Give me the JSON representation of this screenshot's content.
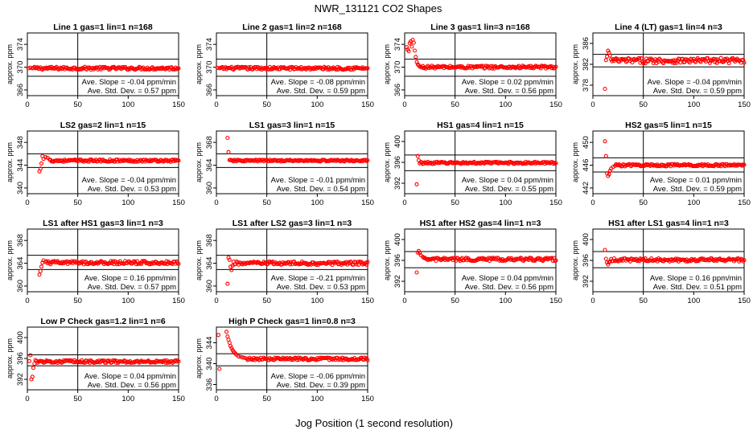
{
  "page": {
    "title": "NWR_131121  CO2 Shapes",
    "xlabel": "Jog Position (1 second resolution)"
  },
  "chart_data": [
    {
      "type": "scatter",
      "title": "Line 1 gas=1 lin=1 n=168",
      "ylabel": "approx. ppm",
      "xlim": [
        0,
        150
      ],
      "ylim": [
        365,
        376
      ],
      "yticks": [
        366,
        370,
        374
      ],
      "xticks": [
        0,
        50,
        100,
        150
      ],
      "hlines": [
        371.4,
        368.4
      ],
      "vline": 50,
      "slope": "Ave. Slope = -0.04  ppm/min",
      "stddev": "Ave. Std. Dev. = 0.57  ppm",
      "points": [
        [
          1,
          369.8
        ],
        [
          3,
          369.9
        ],
        [
          5,
          369.8
        ]
      ],
      "baseline": 369.8,
      "noise": 0.25
    },
    {
      "type": "scatter",
      "title": "Line 2 gas=1 lin=2 n=168",
      "ylabel": "approx. ppm",
      "xlim": [
        0,
        150
      ],
      "ylim": [
        365,
        376
      ],
      "yticks": [
        366,
        370,
        374
      ],
      "xticks": [
        0,
        50,
        100,
        150
      ],
      "hlines": [
        371.4,
        368.4
      ],
      "vline": 50,
      "slope": "Ave. Slope = -0.08  ppm/min",
      "stddev": "Ave. Std. Dev. = 0.59  ppm",
      "points": [
        [
          1,
          369.9
        ],
        [
          3,
          369.8
        ]
      ],
      "baseline": 369.8,
      "noise": 0.25
    },
    {
      "type": "scatter",
      "title": "Line 3 gas=1 lin=3 n=168",
      "ylabel": "approx. ppm",
      "xlim": [
        0,
        150
      ],
      "ylim": [
        365,
        376
      ],
      "yticks": [
        366,
        370,
        374
      ],
      "xticks": [
        0,
        50,
        100,
        150
      ],
      "hlines": [
        371.4,
        368.4
      ],
      "vline": 50,
      "slope": "Ave. Slope = 0.02  ppm/min",
      "stddev": "Ave. Std. Dev. = 0.56  ppm",
      "points": [
        [
          2,
          373.5
        ],
        [
          3,
          373.1
        ],
        [
          4,
          372.8
        ],
        [
          5,
          374.2
        ],
        [
          6,
          374.5
        ],
        [
          7,
          373.6
        ],
        [
          8,
          374.8
        ],
        [
          9,
          374.3
        ],
        [
          10,
          372.9
        ],
        [
          11,
          371.8
        ],
        [
          12,
          370.9
        ],
        [
          13,
          370.5
        ],
        [
          14,
          370.3
        ]
      ],
      "baseline": 370.0,
      "noise": 0.25
    },
    {
      "type": "scatter",
      "title": "Line 4 (LT) gas=1 lin=4 n=3",
      "ylabel": "approx. ppm",
      "xlim": [
        0,
        150
      ],
      "ylim": [
        376,
        388
      ],
      "yticks": [
        378,
        382,
        386
      ],
      "xticks": [
        0,
        50,
        100,
        150
      ],
      "hlines": [
        383.9,
        381.5
      ],
      "vline": 50,
      "slope": "Ave. Slope = -0.04  ppm/min",
      "stddev": "Ave. Std. Dev. = 0.59  ppm",
      "points": [
        [
          12,
          377.3
        ],
        [
          13,
          382.8
        ],
        [
          14,
          383.5
        ],
        [
          15,
          384.6
        ],
        [
          16,
          384.2
        ],
        [
          17,
          383.7
        ]
      ],
      "baseline": 382.7,
      "noise": 0.5
    },
    {
      "type": "scatter",
      "title": "LS2 gas=2 lin=1 n=15",
      "ylabel": "approx. ppm",
      "xlim": [
        0,
        150
      ],
      "ylim": [
        339,
        350
      ],
      "yticks": [
        340,
        344,
        348
      ],
      "xticks": [
        0,
        50,
        100,
        150
      ],
      "hlines": [
        346.0,
        343.6
      ],
      "vline": 50,
      "slope": "Ave. Slope = -0.04  ppm/min",
      "stddev": "Ave. Std. Dev. = 0.53  ppm",
      "points": [
        [
          12,
          342.9
        ],
        [
          13,
          343.4
        ],
        [
          14,
          344.3
        ],
        [
          15,
          345.6
        ],
        [
          16,
          345.1
        ],
        [
          18,
          345.4
        ],
        [
          20,
          345.3
        ],
        [
          22,
          345.0
        ]
      ],
      "baseline": 344.8,
      "noise": 0.2
    },
    {
      "type": "scatter",
      "title": "LS1 gas=3 lin=1 n=15",
      "ylabel": "approx. ppm",
      "xlim": [
        0,
        150
      ],
      "ylim": [
        359,
        370
      ],
      "yticks": [
        360,
        364,
        368
      ],
      "xticks": [
        0,
        50,
        100,
        150
      ],
      "hlines": [
        366.0,
        363.6
      ],
      "vline": 50,
      "slope": "Ave. Slope = -0.01  ppm/min",
      "stddev": "Ave. Std. Dev. = 0.54  ppm",
      "points": [
        [
          11,
          368.8
        ],
        [
          12,
          366.3
        ]
      ],
      "baseline": 364.8,
      "noise": 0.15
    },
    {
      "type": "scatter",
      "title": "HS1 gas=4 lin=1 n=15",
      "ylabel": "approx. ppm",
      "xlim": [
        0,
        150
      ],
      "ylim": [
        390,
        402
      ],
      "yticks": [
        392,
        396,
        400
      ],
      "xticks": [
        0,
        50,
        100,
        150
      ],
      "hlines": [
        397.4,
        394.4
      ],
      "vline": 50,
      "slope": "Ave. Slope = 0.04  ppm/min",
      "stddev": "Ave. Std. Dev. = 0.55  ppm",
      "points": [
        [
          12,
          391.8
        ],
        [
          13,
          397.2
        ],
        [
          14,
          396.4
        ],
        [
          15,
          395.8
        ]
      ],
      "baseline": 395.9,
      "noise": 0.2
    },
    {
      "type": "scatter",
      "title": "HS2 gas=5 lin=1 n=15",
      "ylabel": "approx. ppm",
      "xlim": [
        0,
        150
      ],
      "ylim": [
        441,
        452
      ],
      "yticks": [
        442,
        446,
        450
      ],
      "xticks": [
        0,
        50,
        100,
        150
      ],
      "hlines": [
        447.3,
        444.8
      ],
      "vline": 50,
      "slope": "Ave. Slope = 0.01  ppm/min",
      "stddev": "Ave. Std. Dev. = 0.59  ppm",
      "points": [
        [
          12,
          450.2
        ],
        [
          13,
          447.6
        ],
        [
          14,
          444.6
        ],
        [
          15,
          444.1
        ],
        [
          16,
          444.4
        ],
        [
          17,
          445.0
        ],
        [
          18,
          445.4
        ],
        [
          20,
          445.7
        ],
        [
          22,
          445.9
        ]
      ],
      "baseline": 446.0,
      "noise": 0.2
    },
    {
      "type": "scatter",
      "title": "LS1 after HS1 gas=3 lin=1 n=3",
      "ylabel": "approx. ppm",
      "xlim": [
        0,
        150
      ],
      "ylim": [
        359,
        370
      ],
      "yticks": [
        360,
        364,
        368
      ],
      "xticks": [
        0,
        50,
        100,
        150
      ],
      "hlines": [
        365.4,
        362.9
      ],
      "vline": 50,
      "slope": "Ave. Slope = 0.16  ppm/min",
      "stddev": "Ave. Std. Dev. = 0.57  ppm",
      "points": [
        [
          12,
          362.0
        ],
        [
          13,
          362.6
        ],
        [
          14,
          363.4
        ],
        [
          15,
          364.1
        ],
        [
          16,
          364.5
        ],
        [
          18,
          364.2
        ]
      ],
      "baseline": 364.1,
      "noise": 0.3
    },
    {
      "type": "scatter",
      "title": "LS1 after LS2 gas=3 lin=1 n=3",
      "ylabel": "approx. ppm",
      "xlim": [
        0,
        150
      ],
      "ylim": [
        359,
        370
      ],
      "yticks": [
        360,
        364,
        368
      ],
      "xticks": [
        0,
        50,
        100,
        150
      ],
      "hlines": [
        365.4,
        362.9
      ],
      "vline": 50,
      "slope": "Ave. Slope = -0.21  ppm/min",
      "stddev": "Ave. Std. Dev. = 0.53  ppm",
      "points": [
        [
          11,
          360.4
        ],
        [
          12,
          365.0
        ],
        [
          13,
          364.6
        ],
        [
          14,
          363.4
        ],
        [
          15,
          362.8
        ],
        [
          16,
          363.6
        ]
      ],
      "baseline": 364.0,
      "noise": 0.3
    },
    {
      "type": "scatter",
      "title": "HS1 after HS2 gas=4 lin=1 n=3",
      "ylabel": "approx. ppm",
      "xlim": [
        0,
        150
      ],
      "ylim": [
        390,
        402
      ],
      "yticks": [
        392,
        396,
        400
      ],
      "xticks": [
        0,
        50,
        100,
        150
      ],
      "hlines": [
        397.7,
        394.6
      ],
      "vline": 50,
      "slope": "Ave. Slope = 0.04  ppm/min",
      "stddev": "Ave. Std. Dev. = 0.56  ppm",
      "points": [
        [
          12,
          393.7
        ],
        [
          13,
          397.5
        ],
        [
          14,
          397.8
        ],
        [
          15,
          397.4
        ],
        [
          16,
          397.0
        ],
        [
          18,
          396.7
        ]
      ],
      "baseline": 396.2,
      "noise": 0.3
    },
    {
      "type": "scatter",
      "title": "HS1 after LS1 gas=4 lin=1 n=3",
      "ylabel": "approx. ppm",
      "xlim": [
        0,
        150
      ],
      "ylim": [
        390,
        402
      ],
      "yticks": [
        392,
        396,
        400
      ],
      "xticks": [
        0,
        50,
        100,
        150
      ],
      "hlines": [
        397.7,
        394.6
      ],
      "vline": 50,
      "slope": "Ave. Slope = 0.16  ppm/min",
      "stddev": "Ave. Std. Dev. = 0.51  ppm",
      "points": [
        [
          12,
          398.0
        ],
        [
          13,
          396.3
        ],
        [
          14,
          395.6
        ],
        [
          15,
          395.2
        ],
        [
          16,
          395.6
        ]
      ],
      "baseline": 396.1,
      "noise": 0.3
    },
    {
      "type": "scatter",
      "title": "Low P Check gas=1.2 lin=1 n=6",
      "ylabel": "approx. ppm",
      "xlim": [
        0,
        150
      ],
      "ylim": [
        390,
        402
      ],
      "yticks": [
        392,
        396,
        400
      ],
      "xticks": [
        0,
        50,
        100,
        150
      ],
      "hlines": [
        396.7,
        394.6
      ],
      "vline": 50,
      "slope": "Ave. Slope = 0.04  ppm/min",
      "stddev": "Ave. Std. Dev. = 0.56  ppm",
      "points": [
        [
          2,
          395.5
        ],
        [
          3,
          396.6
        ],
        [
          4,
          392.0
        ],
        [
          5,
          392.5
        ],
        [
          6,
          394.2
        ],
        [
          7,
          395.0
        ],
        [
          8,
          395.7
        ],
        [
          9,
          395.5
        ]
      ],
      "baseline": 395.4,
      "noise": 0.25
    },
    {
      "type": "scatter",
      "title": "High P Check gas=1 lin=0.8 n=3",
      "ylabel": "approx. ppm",
      "xlim": [
        0,
        150
      ],
      "ylim": [
        335,
        347
      ],
      "yticks": [
        336,
        340,
        344
      ],
      "xticks": [
        0,
        50,
        100,
        150
      ],
      "hlines": [
        341.9,
        339.6
      ],
      "vline": 50,
      "slope": "Ave. Slope = -0.06  ppm/min",
      "stddev": "Ave. Std. Dev. = 0.39  ppm",
      "points": [
        [
          2,
          345.5
        ],
        [
          3,
          339.0
        ],
        [
          10,
          346.1
        ],
        [
          11,
          345.2
        ],
        [
          12,
          344.6
        ],
        [
          13,
          344.0
        ],
        [
          14,
          343.4
        ],
        [
          15,
          343.0
        ],
        [
          16,
          342.6
        ],
        [
          17,
          342.3
        ],
        [
          18,
          342.1
        ],
        [
          19,
          341.9
        ],
        [
          20,
          341.7
        ],
        [
          22,
          341.4
        ],
        [
          24,
          341.3
        ],
        [
          26,
          341.2
        ],
        [
          28,
          341.1
        ],
        [
          30,
          341.0
        ]
      ],
      "baseline": 340.9,
      "noise": 0.25
    }
  ]
}
